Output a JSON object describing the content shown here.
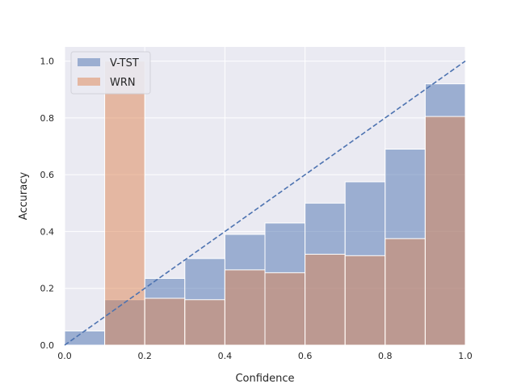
{
  "chart_data": {
    "type": "bar",
    "xlabel": "Confidence",
    "ylabel": "Accuracy",
    "xlim": [
      0.0,
      1.0
    ],
    "ylim": [
      0.0,
      1.05
    ],
    "xticks": [
      "0.0",
      "0.2",
      "0.4",
      "0.6",
      "0.8",
      "1.0"
    ],
    "yticks": [
      "0.0",
      "0.2",
      "0.4",
      "0.6",
      "0.8",
      "1.0"
    ],
    "grid": true,
    "legend_position": "top-left",
    "bin_edges": [
      0.0,
      0.1,
      0.2,
      0.3,
      0.4,
      0.5,
      0.6,
      0.7,
      0.8,
      0.9,
      1.0
    ],
    "series": [
      {
        "name": "V-TST",
        "color": "#4c72b0",
        "values": [
          0.05,
          0.16,
          0.235,
          0.305,
          0.39,
          0.43,
          0.5,
          0.575,
          0.69,
          0.92
        ]
      },
      {
        "name": "WRN",
        "color": "#dd8452",
        "values": [
          0.0,
          1.0,
          0.165,
          0.16,
          0.265,
          0.255,
          0.32,
          0.315,
          0.375,
          0.805
        ]
      }
    ],
    "reference_line": {
      "from": [
        0.0,
        0.0
      ],
      "to": [
        1.0,
        1.0
      ],
      "style": "dashed",
      "color": "#4c72b0"
    }
  }
}
